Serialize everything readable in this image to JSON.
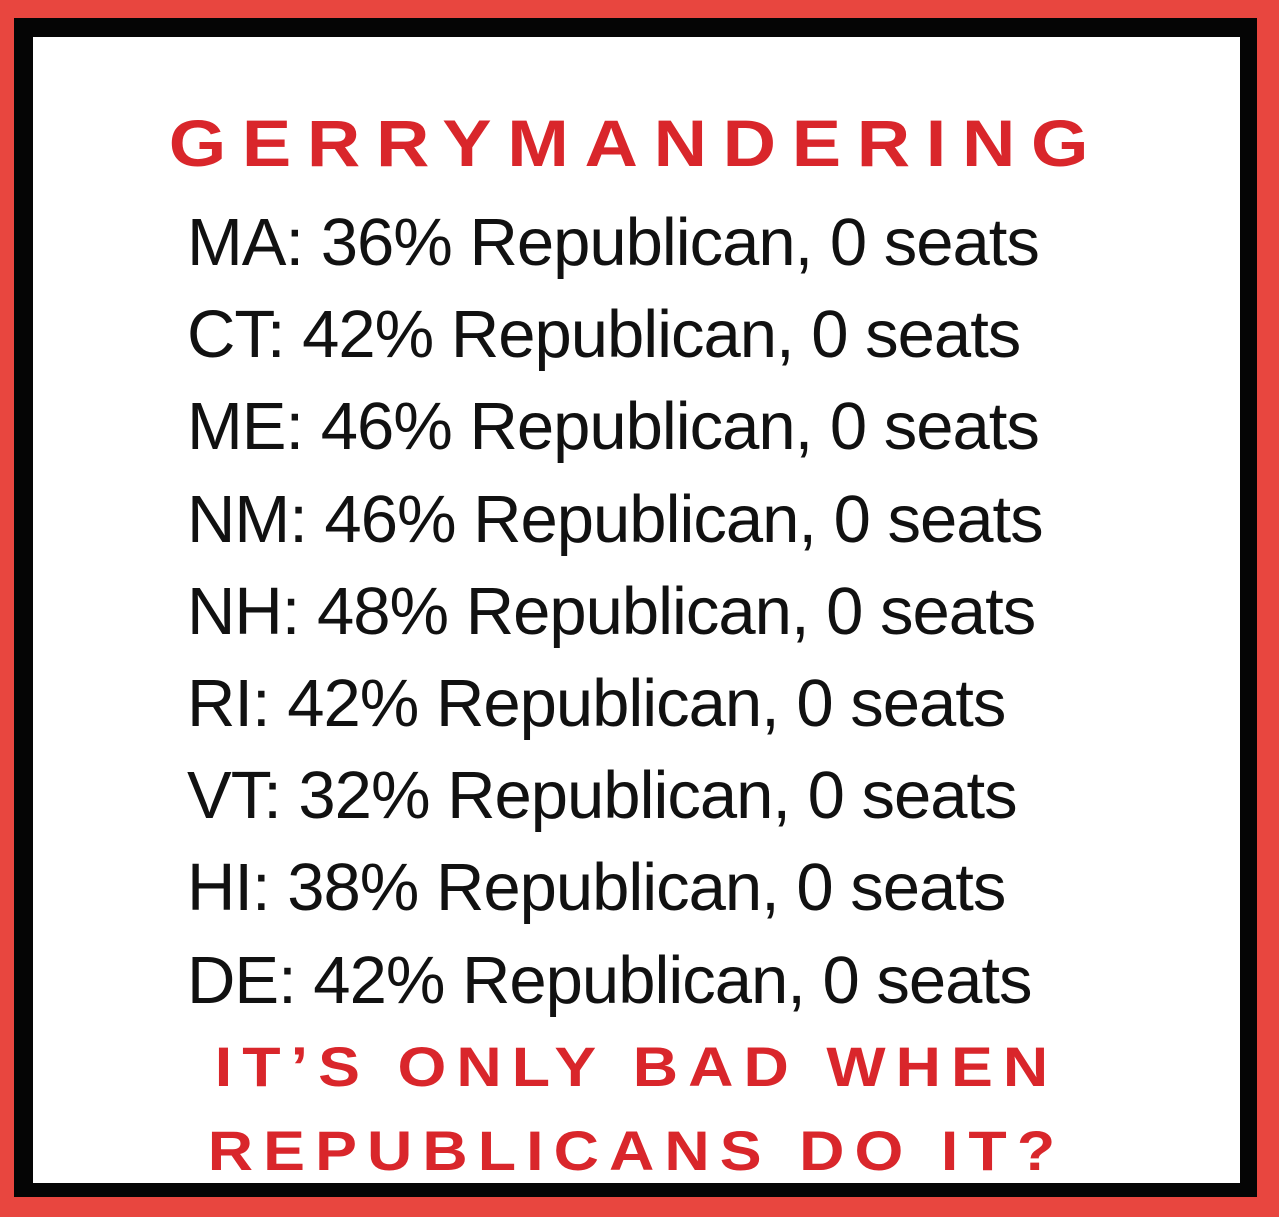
{
  "title": "GERRYMANDERING",
  "lines": [
    "MA: 36% Republican, 0 seats",
    "CT: 42% Republican, 0 seats",
    "ME: 46% Republican, 0 seats",
    "NM: 46% Republican, 0 seats",
    "NH: 48% Republican, 0 seats",
    "RI: 42% Republican, 0 seats",
    "VT: 32% Republican, 0 seats",
    "HI: 38% Republican, 0 seats",
    "DE: 42% Republican, 0 seats"
  ],
  "tagline": [
    "IT’S ONLY BAD WHEN",
    "REPUBLICANS DO IT?"
  ],
  "colors": {
    "accent_red": "#d9262b",
    "border_red": "#e8463f",
    "border_black": "#050505"
  }
}
